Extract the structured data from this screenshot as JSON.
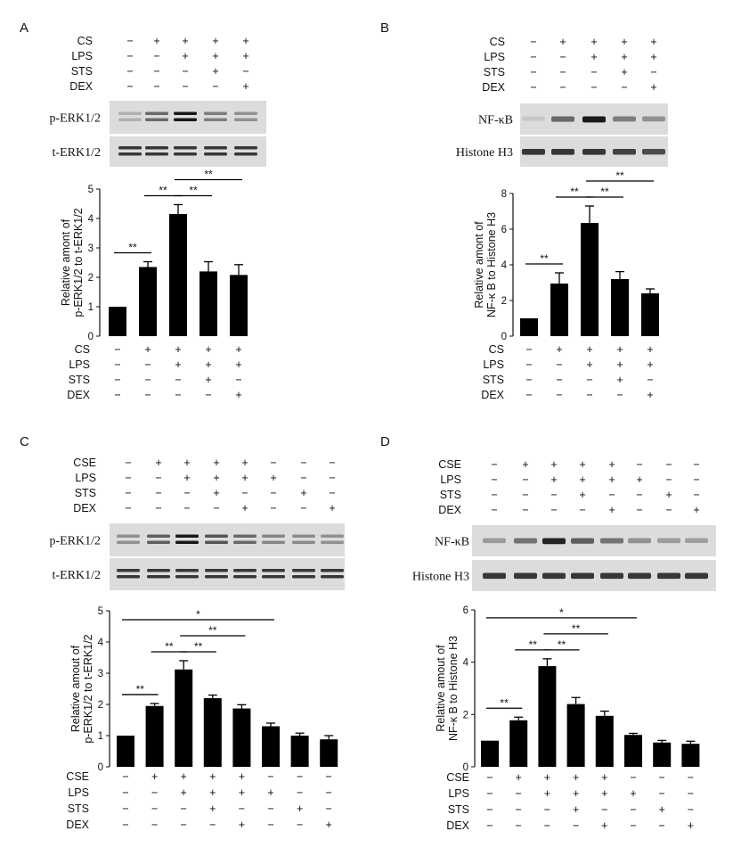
{
  "figure": {
    "panels": [
      {
        "letter": "A",
        "treatment_rows": [
          {
            "label": "CS",
            "signs": [
              "−",
              "+",
              "+",
              "+",
              "+"
            ]
          },
          {
            "label": "LPS",
            "signs": [
              "−",
              "−",
              "+",
              "+",
              "+"
            ]
          },
          {
            "label": "STS",
            "signs": [
              "−",
              "−",
              "−",
              "+",
              "−"
            ]
          },
          {
            "label": "DEX",
            "signs": [
              "−",
              "−",
              "−",
              "−",
              "+"
            ]
          }
        ],
        "blots": [
          {
            "label": "p-ERK1/2",
            "lanes": [
              0.2,
              0.55,
              0.95,
              0.45,
              0.35
            ]
          },
          {
            "label": "t-ERK1/2",
            "lanes": [
              0.8,
              0.8,
              0.8,
              0.8,
              0.8
            ]
          }
        ]
      },
      {
        "letter": "B",
        "treatment_rows": [
          {
            "label": "CS",
            "signs": [
              "−",
              "+",
              "+",
              "+",
              "+"
            ]
          },
          {
            "label": "LPS",
            "signs": [
              "−",
              "−",
              "+",
              "+",
              "+"
            ]
          },
          {
            "label": "STS",
            "signs": [
              "−",
              "−",
              "−",
              "+",
              "−"
            ]
          },
          {
            "label": "DEX",
            "signs": [
              "−",
              "−",
              "−",
              "−",
              "+"
            ]
          }
        ],
        "blots": [
          {
            "label": "NF-κB",
            "lanes": [
              0.08,
              0.55,
              0.95,
              0.45,
              0.35
            ]
          },
          {
            "label": "Histone H3",
            "lanes": [
              0.8,
              0.8,
              0.8,
              0.75,
              0.7
            ]
          }
        ]
      },
      {
        "letter": "C",
        "treatment_rows": [
          {
            "label": "CSE",
            "signs": [
              "−",
              "+",
              "+",
              "+",
              "+",
              "−",
              "−",
              "−"
            ]
          },
          {
            "label": "LPS",
            "signs": [
              "−",
              "−",
              "+",
              "+",
              "+",
              "+",
              "−",
              "−"
            ]
          },
          {
            "label": "STS",
            "signs": [
              "−",
              "−",
              "−",
              "+",
              "−",
              "−",
              "+",
              "−"
            ]
          },
          {
            "label": "DEX",
            "signs": [
              "−",
              "−",
              "−",
              "−",
              "+",
              "−",
              "−",
              "+"
            ]
          }
        ],
        "blots": [
          {
            "label": "p-ERK1/2",
            "lanes": [
              0.35,
              0.6,
              0.95,
              0.65,
              0.55,
              0.4,
              0.38,
              0.35
            ]
          },
          {
            "label": "t-ERK1/2",
            "lanes": [
              0.8,
              0.8,
              0.8,
              0.8,
              0.8,
              0.8,
              0.8,
              0.8
            ]
          }
        ]
      },
      {
        "letter": "D",
        "treatment_rows": [
          {
            "label": "CSE",
            "signs": [
              "−",
              "+",
              "+",
              "+",
              "+",
              "−",
              "−",
              "−"
            ]
          },
          {
            "label": "LPS",
            "signs": [
              "−",
              "−",
              "+",
              "+",
              "+",
              "+",
              "−",
              "−"
            ]
          },
          {
            "label": "STS",
            "signs": [
              "−",
              "−",
              "−",
              "+",
              "−",
              "−",
              "+",
              "−"
            ]
          },
          {
            "label": "DEX",
            "signs": [
              "−",
              "−",
              "−",
              "−",
              "+",
              "−",
              "−",
              "+"
            ]
          }
        ],
        "blots": [
          {
            "label": "NF-κB",
            "lanes": [
              0.3,
              0.5,
              0.9,
              0.6,
              0.5,
              0.35,
              0.3,
              0.28
            ]
          },
          {
            "label": "Histone H3",
            "lanes": [
              0.8,
              0.8,
              0.8,
              0.8,
              0.8,
              0.8,
              0.8,
              0.8
            ]
          }
        ]
      }
    ]
  },
  "chart_data": [
    {
      "panel": "A",
      "type": "bar",
      "ylabel": [
        "Relative amont of",
        "p-ERK1/2 to t-ERK1/2"
      ],
      "ylim": [
        0,
        5
      ],
      "yticks": [
        0,
        1,
        2,
        3,
        4,
        5
      ],
      "values": [
        1.0,
        2.35,
        4.15,
        2.2,
        2.08
      ],
      "errors": [
        0,
        0.18,
        0.32,
        0.33,
        0.35
      ],
      "significance": [
        {
          "from": 0,
          "to": 1,
          "label": "**",
          "level": 0
        },
        {
          "from": 1,
          "to": 2,
          "label": "**",
          "level": 0
        },
        {
          "from": 2,
          "to": 3,
          "label": "**",
          "level": 0
        },
        {
          "from": 2,
          "to": 4,
          "label": "**",
          "level": 1
        }
      ],
      "condition_rows": [
        {
          "label": "CS",
          "signs": [
            "−",
            "+",
            "+",
            "+",
            "+"
          ]
        },
        {
          "label": "LPS",
          "signs": [
            "−",
            "−",
            "+",
            "+",
            "+"
          ]
        },
        {
          "label": "STS",
          "signs": [
            "−",
            "−",
            "−",
            "+",
            "−"
          ]
        },
        {
          "label": "DEX",
          "signs": [
            "−",
            "−",
            "−",
            "−",
            "+"
          ]
        }
      ]
    },
    {
      "panel": "B",
      "type": "bar",
      "ylabel": [
        "Relative amont of",
        "NF-κ B to Histone H3"
      ],
      "ylim": [
        0,
        8
      ],
      "yticks": [
        0,
        2,
        4,
        6,
        8
      ],
      "values": [
        1.0,
        2.95,
        6.35,
        3.2,
        2.4
      ],
      "errors": [
        0,
        0.6,
        0.95,
        0.42,
        0.25
      ],
      "significance": [
        {
          "from": 0,
          "to": 1,
          "label": "**",
          "level": 0
        },
        {
          "from": 1,
          "to": 2,
          "label": "**",
          "level": 0
        },
        {
          "from": 2,
          "to": 3,
          "label": "**",
          "level": 0
        },
        {
          "from": 2,
          "to": 4,
          "label": "**",
          "level": 1
        }
      ],
      "condition_rows": [
        {
          "label": "CS",
          "signs": [
            "−",
            "+",
            "+",
            "+",
            "+"
          ]
        },
        {
          "label": "LPS",
          "signs": [
            "−",
            "−",
            "+",
            "+",
            "+"
          ]
        },
        {
          "label": "STS",
          "signs": [
            "−",
            "−",
            "−",
            "+",
            "−"
          ]
        },
        {
          "label": "DEX",
          "signs": [
            "−",
            "−",
            "−",
            "−",
            "+"
          ]
        }
      ]
    },
    {
      "panel": "C",
      "type": "bar",
      "ylabel": [
        "Relative amout of",
        "p-ERK1/2  to t-ERK1/2"
      ],
      "ylim": [
        0,
        5
      ],
      "yticks": [
        0,
        1,
        2,
        3,
        4,
        5
      ],
      "values": [
        1.0,
        1.95,
        3.12,
        2.2,
        1.87,
        1.3,
        1.0,
        0.88
      ],
      "errors": [
        0,
        0.08,
        0.28,
        0.1,
        0.12,
        0.1,
        0.08,
        0.12
      ],
      "significance": [
        {
          "from": 0,
          "to": 1,
          "label": "**",
          "level": 0
        },
        {
          "from": 1,
          "to": 2,
          "label": "**",
          "level": 0
        },
        {
          "from": 2,
          "to": 3,
          "label": "**",
          "level": 0
        },
        {
          "from": 2,
          "to": 4,
          "label": "**",
          "level": 1
        },
        {
          "from": 0,
          "to": 5,
          "label": "*",
          "level": 2
        }
      ],
      "condition_rows": [
        {
          "label": "CSE",
          "signs": [
            "−",
            "+",
            "+",
            "+",
            "+",
            "−",
            "−",
            "−"
          ]
        },
        {
          "label": "LPS",
          "signs": [
            "−",
            "−",
            "+",
            "+",
            "+",
            "+",
            "−",
            "−"
          ]
        },
        {
          "label": "STS",
          "signs": [
            "−",
            "−",
            "−",
            "+",
            "−",
            "−",
            "+",
            "−"
          ]
        },
        {
          "label": "DEX",
          "signs": [
            "−",
            "−",
            "−",
            "−",
            "+",
            "−",
            "−",
            "+"
          ]
        }
      ]
    },
    {
      "panel": "D",
      "type": "bar",
      "ylabel": [
        "Relative amout of",
        "NF-κ B to Histone H3"
      ],
      "ylim": [
        0,
        6
      ],
      "yticks": [
        0,
        2,
        4,
        6
      ],
      "values": [
        1.0,
        1.78,
        3.85,
        2.4,
        1.95,
        1.22,
        0.93,
        0.88
      ],
      "errors": [
        0,
        0.12,
        0.28,
        0.25,
        0.18,
        0.06,
        0.08,
        0.1
      ],
      "significance": [
        {
          "from": 0,
          "to": 1,
          "label": "**",
          "level": 0
        },
        {
          "from": 1,
          "to": 2,
          "label": "**",
          "level": 0
        },
        {
          "from": 2,
          "to": 3,
          "label": "**",
          "level": 0
        },
        {
          "from": 2,
          "to": 4,
          "label": "**",
          "level": 1
        },
        {
          "from": 0,
          "to": 5,
          "label": "*",
          "level": 2
        }
      ],
      "condition_rows": [
        {
          "label": "CSE",
          "signs": [
            "−",
            "+",
            "+",
            "+",
            "+",
            "−",
            "−",
            "−"
          ]
        },
        {
          "label": "LPS",
          "signs": [
            "−",
            "−",
            "+",
            "+",
            "+",
            "+",
            "−",
            "−"
          ]
        },
        {
          "label": "STS",
          "signs": [
            "−",
            "−",
            "−",
            "+",
            "−",
            "−",
            "+",
            "−"
          ]
        },
        {
          "label": "DEX",
          "signs": [
            "−",
            "−",
            "−",
            "−",
            "+",
            "−",
            "−",
            "+"
          ]
        }
      ]
    }
  ]
}
